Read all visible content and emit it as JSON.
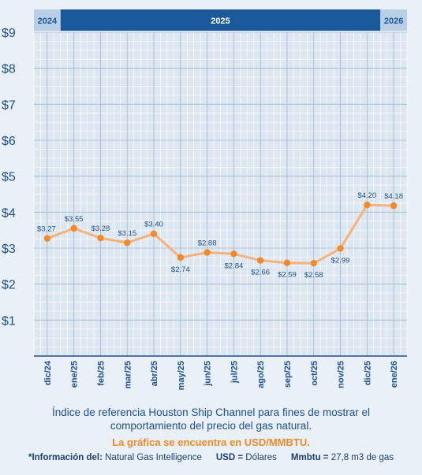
{
  "chart_data": {
    "type": "line",
    "year_bands": [
      {
        "label": "2024",
        "start": 0,
        "end": 0
      },
      {
        "label": "2025",
        "start": 1,
        "end": 12
      },
      {
        "label": "2026",
        "start": 13,
        "end": 13
      }
    ],
    "categories": [
      "dic/24",
      "ene/25",
      "feb/25",
      "mar/25",
      "abr/25",
      "may/25",
      "jun/25",
      "jul/25",
      "ago/25",
      "sep/25",
      "oct/25",
      "nov/25",
      "dic/25",
      "ene/26"
    ],
    "values": [
      3.27,
      3.55,
      3.28,
      3.15,
      3.4,
      2.74,
      2.88,
      2.84,
      2.66,
      2.59,
      2.58,
      2.99,
      4.2,
      4.18
    ],
    "value_labels": [
      "$3.27",
      "$3.55",
      "$3.28",
      "$3.15",
      "$3.40",
      "$2.74",
      "$2.88",
      "$2.84",
      "$2.66",
      "$2.59",
      "$2.58",
      "$2.99",
      "$4.20",
      "$4.18"
    ],
    "label_position": [
      "above",
      "above",
      "above",
      "above",
      "above",
      "below",
      "above",
      "below",
      "below",
      "below",
      "below",
      "below",
      "above",
      "above"
    ],
    "y_ticks": [
      "$1",
      "$2",
      "$3",
      "$4",
      "$5",
      "$6",
      "$7",
      "$8",
      "$9"
    ],
    "y_tick_values": [
      1,
      2,
      3,
      4,
      5,
      6,
      7,
      8,
      9
    ],
    "ylim": [
      0,
      9
    ],
    "grid": true
  },
  "caption": {
    "line1": "Índice de referencia Houston Ship Channel para fines de mostrar el",
    "line2": "comportamiento del precio del gas natural.",
    "highlight": "La gráfica se encuentra en USD/MMBTU.",
    "source_label": "*Información del:",
    "source_value": "Natural Gas Intelligence",
    "usd_label": "USD =",
    "usd_value": "Dólares",
    "mmbtu_label": "Mmbtu =",
    "mmbtu_value": "27,8 m3 de gas"
  },
  "colors": {
    "band_dark": "#1a5a9a",
    "band_light": "#b9cfe6",
    "line": "#f7b27e",
    "marker": "#ef8a2d",
    "text": "#1f4f8a"
  }
}
